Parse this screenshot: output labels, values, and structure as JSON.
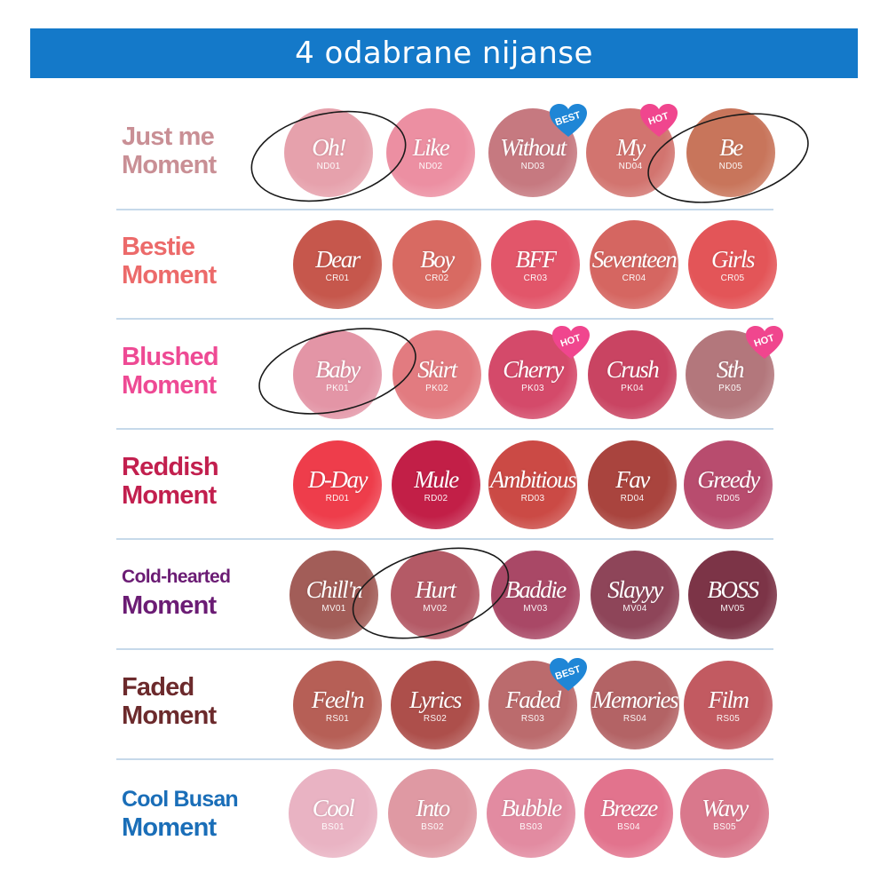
{
  "banner": {
    "title": "4 odabrane nijanse"
  },
  "rows": [
    {
      "line1": "Just me",
      "line2": "Moment",
      "color": "#c98f95",
      "swatches": [
        {
          "name": "Oh!",
          "code": "ND01",
          "color": "#e6a1ac"
        },
        {
          "name": "Like",
          "code": "ND02",
          "color": "#ec8fa2"
        },
        {
          "name": "Without",
          "code": "ND03",
          "color": "#c67980"
        },
        {
          "name": "My",
          "code": "ND04",
          "color": "#d2746f"
        },
        {
          "name": "Be",
          "code": "ND05",
          "color": "#c8755b"
        }
      ],
      "badges": [
        {
          "label": "BEST",
          "color": "#1f86d6"
        },
        {
          "label": "HOT",
          "color": "#f0468e"
        }
      ]
    },
    {
      "line1": "Bestie",
      "line2": "Moment",
      "color": "#ec6a6a",
      "swatches": [
        {
          "name": "Dear",
          "code": "CR01",
          "color": "#c6574c"
        },
        {
          "name": "Boy",
          "code": "CR02",
          "color": "#d86a62"
        },
        {
          "name": "BFF",
          "code": "CR03",
          "color": "#e2566a"
        },
        {
          "name": "Seventeen",
          "code": "CR04",
          "color": "#d56661"
        },
        {
          "name": "Girls",
          "code": "CR05",
          "color": "#e35558"
        }
      ],
      "badges": []
    },
    {
      "line1": "Blushed",
      "line2": "Moment",
      "color": "#ee4a94",
      "swatches": [
        {
          "name": "Baby",
          "code": "PK01",
          "color": "#e395a6"
        },
        {
          "name": "Skirt",
          "code": "PK02",
          "color": "#e27b80"
        },
        {
          "name": "Cherry",
          "code": "PK03",
          "color": "#d44a6a"
        },
        {
          "name": "Crush",
          "code": "PK04",
          "color": "#c94462"
        },
        {
          "name": "Sth",
          "code": "PK05",
          "color": "#b3777c"
        }
      ],
      "badges": [
        {
          "label": "HOT",
          "color": "#f0468e"
        },
        {
          "label": "HOT",
          "color": "#f0468e"
        }
      ]
    },
    {
      "line1": "Reddish",
      "line2": "Moment",
      "color": "#c21f4e",
      "swatches": [
        {
          "name": "D-Day",
          "code": "RD01",
          "color": "#ee3d4b"
        },
        {
          "name": "Mule",
          "code": "RD02",
          "color": "#c21f47"
        },
        {
          "name": "Ambitious",
          "code": "RD03",
          "color": "#cb4a45"
        },
        {
          "name": "Fav",
          "code": "RD04",
          "color": "#a9443e"
        },
        {
          "name": "Greedy",
          "code": "RD05",
          "color": "#b84c6e"
        }
      ],
      "badges": []
    },
    {
      "line1": "Cold-hearted",
      "line2": "Moment",
      "color": "#6b1c74",
      "swatches": [
        {
          "name": "Chill'n",
          "code": "MV01",
          "color": "#a25d58"
        },
        {
          "name": "Hurt",
          "code": "MV02",
          "color": "#b45a66"
        },
        {
          "name": "Baddie",
          "code": "MV03",
          "color": "#a94866"
        },
        {
          "name": "Slayyy",
          "code": "MV04",
          "color": "#8e4559"
        },
        {
          "name": "BOSS",
          "code": "MV05",
          "color": "#7c3447"
        }
      ],
      "badges": []
    },
    {
      "line1": "Faded",
      "line2": "Moment",
      "color": "#6c2a2c",
      "swatches": [
        {
          "name": "Feel'n",
          "code": "RS01",
          "color": "#b65f56"
        },
        {
          "name": "Lyrics",
          "code": "RS02",
          "color": "#ad4f4b"
        },
        {
          "name": "Faded",
          "code": "RS03",
          "color": "#bb6b6d"
        },
        {
          "name": "Memories",
          "code": "RS04",
          "color": "#b36365"
        },
        {
          "name": "Film",
          "code": "RS05",
          "color": "#c25a61"
        }
      ],
      "badges": [
        {
          "label": "BEST",
          "color": "#1f86d6"
        }
      ]
    },
    {
      "line1": "Cool Busan",
      "line2": "Moment",
      "color": "#1a6eb8",
      "swatches": [
        {
          "name": "Cool",
          "code": "BS01",
          "color": "#e9b3c3"
        },
        {
          "name": "Into",
          "code": "BS02",
          "color": "#df99a3"
        },
        {
          "name": "Bubble",
          "code": "BS03",
          "color": "#e28ba1"
        },
        {
          "name": "Breeze",
          "code": "BS04",
          "color": "#e2738d"
        },
        {
          "name": "Wavy",
          "code": "BS05",
          "color": "#d9788c"
        }
      ],
      "badges": []
    }
  ]
}
